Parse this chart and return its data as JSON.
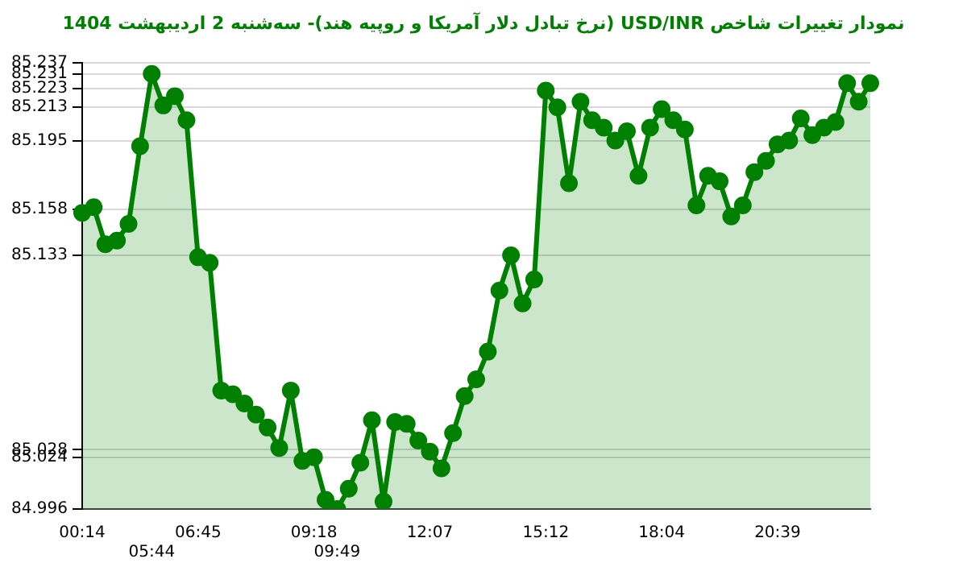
{
  "chart_data": {
    "type": "area",
    "title": "نمودار تغییرات شاخص USD/INR (نرخ تبادل دلار آمریکا و روپیه هند)- سه‌شنبه  2 اردیبهشت 1404",
    "categories": [
      "00:14",
      null,
      null,
      null,
      null,
      null,
      "05:44",
      null,
      null,
      null,
      "06:45",
      null,
      null,
      null,
      null,
      null,
      null,
      null,
      null,
      null,
      "09:18",
      null,
      "09:49",
      null,
      null,
      null,
      null,
      null,
      null,
      null,
      "12:07",
      null,
      null,
      null,
      null,
      null,
      null,
      null,
      null,
      null,
      "15:12",
      null,
      null,
      null,
      null,
      null,
      null,
      null,
      null,
      null,
      "18:04",
      null,
      null,
      null,
      null,
      null,
      null,
      null,
      null,
      null,
      "20:39",
      null,
      null,
      null,
      null,
      null,
      null,
      null,
      null
    ],
    "series": [
      {
        "color": "#008000",
        "values": [
          85.156,
          85.159,
          85.139,
          85.141,
          85.15,
          85.192,
          85.231,
          85.214,
          85.219,
          85.206,
          85.132,
          85.129,
          85.06,
          85.058,
          85.053,
          85.047,
          85.04,
          85.029,
          85.06,
          85.022,
          85.024,
          85.001,
          84.996,
          85.007,
          85.021,
          85.044,
          85.0,
          85.043,
          85.042,
          85.033,
          85.027,
          85.018,
          85.037,
          85.057,
          85.066,
          85.081,
          85.114,
          85.133,
          85.107,
          85.12,
          85.222,
          85.213,
          85.172,
          85.216,
          85.206,
          85.202,
          85.195,
          85.2,
          85.176,
          85.202,
          85.212,
          85.206,
          85.201,
          85.16,
          85.176,
          85.173,
          85.154,
          85.16,
          85.178,
          85.184,
          85.193,
          85.195,
          85.207,
          85.198,
          85.202,
          85.205,
          85.226,
          85.216,
          85.226
        ]
      }
    ],
    "ylim": [
      84.996,
      85.237
    ],
    "yticks": [
      84.996,
      85.024,
      85.028,
      85.133,
      85.158,
      85.195,
      85.213,
      85.223,
      85.231,
      85.237
    ],
    "grid": "y",
    "marker": "circle",
    "legend": false
  }
}
